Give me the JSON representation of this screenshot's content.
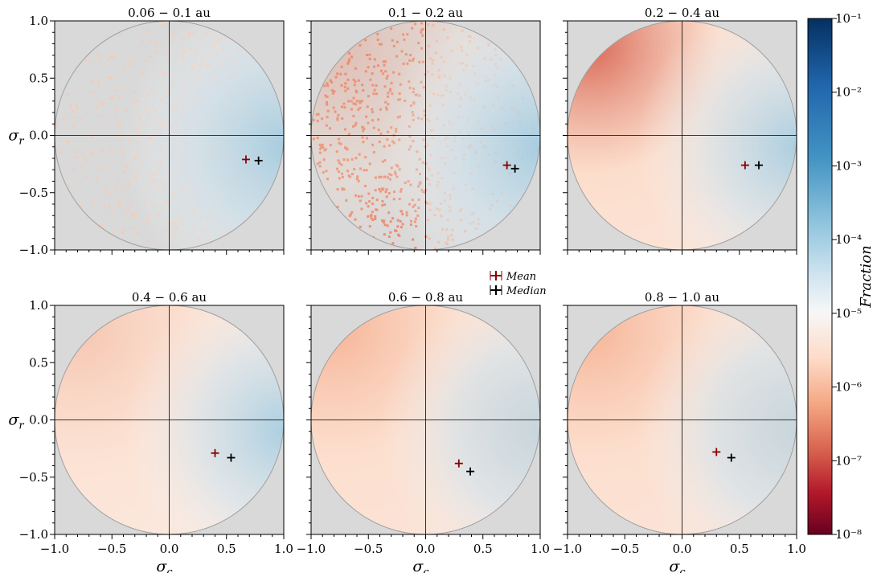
{
  "chart_data": {
    "type": "heatmap",
    "panels": [
      {
        "title": "0.06 − 0.1 au",
        "mean": {
          "x": 0.67,
          "y": -0.21
        },
        "median": {
          "x": 0.78,
          "y": -0.22
        },
        "pattern": "sparse"
      },
      {
        "title": "0.1 − 0.2 au",
        "mean": {
          "x": 0.71,
          "y": -0.26
        },
        "median": {
          "x": 0.78,
          "y": -0.29
        },
        "pattern": "speckled"
      },
      {
        "title": "0.2 − 0.4 au",
        "mean": {
          "x": 0.55,
          "y": -0.26
        },
        "median": {
          "x": 0.67,
          "y": -0.26
        },
        "pattern": "dense"
      },
      {
        "title": "0.4 − 0.6 au",
        "mean": {
          "x": 0.4,
          "y": -0.29
        },
        "median": {
          "x": 0.54,
          "y": -0.33
        },
        "pattern": "speckled-light"
      },
      {
        "title": "0.6 − 0.8 au",
        "mean": {
          "x": 0.29,
          "y": -0.38
        },
        "median": {
          "x": 0.39,
          "y": -0.45
        },
        "pattern": "smooth"
      },
      {
        "title": "0.8 − 1.0 au",
        "mean": {
          "x": 0.3,
          "y": -0.28
        },
        "median": {
          "x": 0.43,
          "y": -0.33
        },
        "pattern": "smooth"
      }
    ],
    "xlabel": "σc",
    "ylabel": "σr",
    "xlim": [
      -1.0,
      1.0
    ],
    "ylim": [
      -1.0,
      1.0
    ],
    "xticks": [
      "−1.0",
      "−0.5",
      "0.0",
      "0.5",
      "1.0"
    ],
    "yticks": [
      "−1.0",
      "−0.5",
      "0.0",
      "0.5",
      "1.0"
    ],
    "legend": [
      {
        "label": "Mean",
        "color": "#8b0000"
      },
      {
        "label": "Median",
        "color": "#000000"
      }
    ],
    "colorbar": {
      "label": "Fraction",
      "scale": "log",
      "range": [
        1e-08,
        0.1
      ],
      "ticks": [
        "10⁻¹",
        "10⁻²",
        "10⁻³",
        "10⁻⁴",
        "10⁻⁵",
        "10⁻⁶",
        "10⁻⁷",
        "10⁻⁸"
      ],
      "colormap": "RdBu",
      "colors": {
        "low": "#67001f",
        "mid": "#f7f7f7",
        "high": "#053061"
      }
    },
    "colors": {
      "background": "#d9d9d9",
      "mean": "#8b0000",
      "median": "#000000"
    }
  }
}
